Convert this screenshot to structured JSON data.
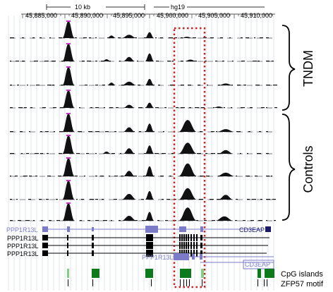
{
  "header": {
    "scale_label": "10 kb",
    "assembly": "hg19",
    "positions": [
      "45,885,000",
      "45,890,000",
      "45,895,000",
      "45,900,000",
      "45,905,000",
      "45,910,000"
    ]
  },
  "groups": {
    "tndm_label": "TNDM",
    "controls_label": "Controls"
  },
  "genes": {
    "ppp1r13l_top": "PPP1R13L",
    "cd3eap_top": "CD3EAP",
    "ppp1r13l_1": "PPP1R13L",
    "ppp1r13l_2": "PPP1R13L",
    "ppp1r13l_3": "PPP1R13L",
    "ppp1r13l_mid": "PPP1R13L",
    "cd3eap_bottom": "CD3EAP"
  },
  "annotation_tracks": {
    "cpg": "CpG islands",
    "zfp57": "ZFP57 motif"
  },
  "colors": {
    "signal": "#111111",
    "peak_tip": "#cc33cc",
    "gene_blue": "#7b7bc8",
    "gene_black": "#000000",
    "cpg_green": "#0a7a1a",
    "highlight_box": "#cc2222"
  }
}
